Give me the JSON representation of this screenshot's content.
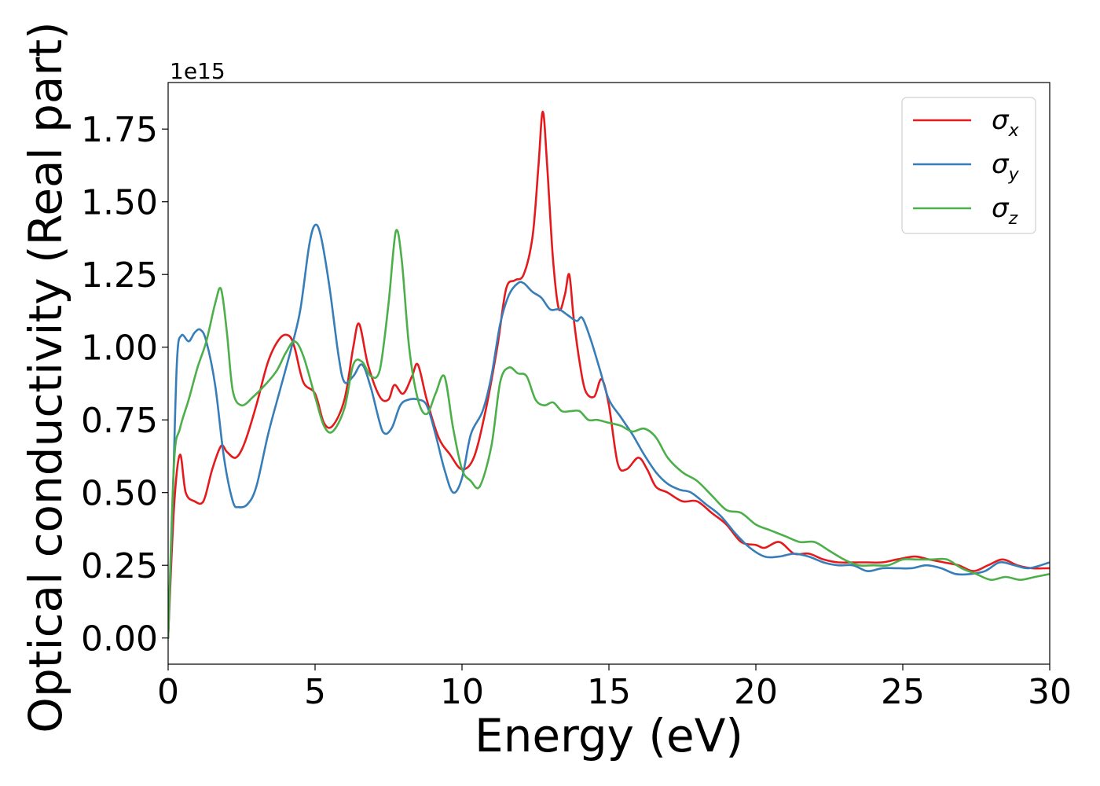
{
  "chart_data": {
    "type": "line",
    "xlabel": "Energy (eV)",
    "ylabel": "Optical conductivity (Real part)",
    "y_offset_text": "1e15",
    "xlim": [
      0,
      30
    ],
    "ylim": [
      -0.09,
      1.91
    ],
    "y_scale_factor": 1000000000000000.0,
    "x_ticks": [
      0,
      5,
      10,
      15,
      20,
      25,
      30
    ],
    "x_tick_labels": [
      "0",
      "5",
      "10",
      "15",
      "20",
      "25",
      "30"
    ],
    "y_ticks": [
      0.0,
      0.25,
      0.5,
      0.75,
      1.0,
      1.25,
      1.5,
      1.75
    ],
    "y_tick_labels": [
      "0.00",
      "0.25",
      "0.50",
      "0.75",
      "1.00",
      "1.25",
      "1.50",
      "1.75"
    ],
    "grid": false,
    "legend_position": "top-right",
    "series": [
      {
        "name": "σ_x",
        "legend_symbol": "σ",
        "legend_sub": "x",
        "color": "#e41a1c",
        "x": [
          0,
          0.2,
          0.4,
          0.6,
          0.9,
          1.2,
          1.5,
          1.8,
          2.0,
          2.3,
          2.6,
          3.0,
          3.4,
          3.8,
          4.1,
          4.3,
          4.6,
          5.0,
          5.3,
          5.6,
          6.0,
          6.3,
          6.5,
          6.8,
          7.2,
          7.5,
          7.7,
          8.0,
          8.3,
          8.5,
          8.8,
          9.2,
          9.6,
          10.0,
          10.4,
          10.8,
          11.2,
          11.5,
          11.8,
          12.1,
          12.4,
          12.6,
          12.75,
          12.9,
          13.1,
          13.3,
          13.5,
          13.65,
          13.8,
          14.0,
          14.2,
          14.5,
          14.75,
          15.0,
          15.3,
          15.6,
          16.0,
          16.3,
          16.6,
          17.0,
          17.5,
          18.0,
          18.5,
          19.0,
          19.5,
          20.0,
          20.3,
          20.8,
          21.3,
          21.8,
          22.3,
          22.8,
          23.3,
          23.8,
          24.3,
          24.8,
          25.4,
          25.9,
          26.4,
          26.9,
          27.4,
          27.9,
          28.4,
          28.9,
          29.4,
          30.0
        ],
        "y": [
          0.0,
          0.45,
          0.63,
          0.5,
          0.47,
          0.47,
          0.58,
          0.66,
          0.64,
          0.62,
          0.67,
          0.8,
          0.95,
          1.03,
          1.04,
          1.0,
          0.88,
          0.84,
          0.74,
          0.73,
          0.82,
          1.0,
          1.08,
          0.94,
          0.83,
          0.82,
          0.87,
          0.84,
          0.9,
          0.94,
          0.82,
          0.69,
          0.63,
          0.58,
          0.62,
          0.78,
          1.0,
          1.2,
          1.23,
          1.25,
          1.38,
          1.62,
          1.81,
          1.62,
          1.3,
          1.13,
          1.18,
          1.25,
          1.1,
          0.95,
          0.85,
          0.83,
          0.89,
          0.8,
          0.6,
          0.58,
          0.62,
          0.58,
          0.52,
          0.5,
          0.47,
          0.47,
          0.43,
          0.39,
          0.33,
          0.32,
          0.31,
          0.33,
          0.29,
          0.29,
          0.27,
          0.26,
          0.26,
          0.26,
          0.26,
          0.27,
          0.28,
          0.27,
          0.26,
          0.25,
          0.23,
          0.25,
          0.27,
          0.25,
          0.24,
          0.24
        ]
      },
      {
        "name": "σ_y",
        "legend_symbol": "σ",
        "legend_sub": "y",
        "color": "#377eb8",
        "x": [
          0,
          0.15,
          0.3,
          0.45,
          0.7,
          0.9,
          1.1,
          1.3,
          1.6,
          1.9,
          2.2,
          2.4,
          2.7,
          3.0,
          3.4,
          3.8,
          4.2,
          4.5,
          4.8,
          5.0,
          5.2,
          5.5,
          5.8,
          6.0,
          6.3,
          6.6,
          6.9,
          7.3,
          7.6,
          7.9,
          8.2,
          8.5,
          8.8,
          9.1,
          9.4,
          9.7,
          10.0,
          10.3,
          10.7,
          11.0,
          11.3,
          11.6,
          11.9,
          12.1,
          12.4,
          12.7,
          13.0,
          13.3,
          13.6,
          13.9,
          14.1,
          14.4,
          14.7,
          15.0,
          15.4,
          15.8,
          16.2,
          16.6,
          17.0,
          17.4,
          17.8,
          18.3,
          18.8,
          19.3,
          19.8,
          20.3,
          20.8,
          21.3,
          21.8,
          22.3,
          22.8,
          23.3,
          23.8,
          24.3,
          24.8,
          25.3,
          25.8,
          26.3,
          26.8,
          27.3,
          27.8,
          28.3,
          28.8,
          29.3,
          30.0
        ],
        "y": [
          0.0,
          0.45,
          0.95,
          1.04,
          1.02,
          1.05,
          1.06,
          1.02,
          0.87,
          0.62,
          0.47,
          0.45,
          0.46,
          0.52,
          0.7,
          0.85,
          1.0,
          1.13,
          1.35,
          1.42,
          1.38,
          1.2,
          0.97,
          0.88,
          0.9,
          0.94,
          0.86,
          0.71,
          0.72,
          0.8,
          0.82,
          0.82,
          0.8,
          0.7,
          0.58,
          0.5,
          0.55,
          0.7,
          0.78,
          0.9,
          1.08,
          1.18,
          1.22,
          1.22,
          1.19,
          1.17,
          1.13,
          1.13,
          1.11,
          1.09,
          1.1,
          1.02,
          0.92,
          0.82,
          0.76,
          0.7,
          0.63,
          0.57,
          0.53,
          0.51,
          0.5,
          0.46,
          0.42,
          0.36,
          0.31,
          0.28,
          0.28,
          0.29,
          0.28,
          0.26,
          0.25,
          0.25,
          0.23,
          0.24,
          0.24,
          0.24,
          0.25,
          0.24,
          0.22,
          0.22,
          0.23,
          0.26,
          0.25,
          0.24,
          0.26
        ]
      },
      {
        "name": "σ_z",
        "legend_symbol": "σ",
        "legend_sub": "z",
        "color": "#4daf4a",
        "x": [
          0,
          0.2,
          0.4,
          0.7,
          1.0,
          1.3,
          1.6,
          1.8,
          2.0,
          2.2,
          2.5,
          2.9,
          3.3,
          3.7,
          4.0,
          4.3,
          4.6,
          5.0,
          5.3,
          5.6,
          6.0,
          6.3,
          6.6,
          6.9,
          7.2,
          7.5,
          7.75,
          7.95,
          8.2,
          8.5,
          8.8,
          9.1,
          9.4,
          9.7,
          10.0,
          10.3,
          10.6,
          11.0,
          11.3,
          11.6,
          11.9,
          12.2,
          12.5,
          12.8,
          13.1,
          13.4,
          13.7,
          14.0,
          14.3,
          14.6,
          15.0,
          15.4,
          15.8,
          16.2,
          16.6,
          17.0,
          17.5,
          18.0,
          18.5,
          19.0,
          19.5,
          20.0,
          20.5,
          21.0,
          21.5,
          22.0,
          22.5,
          23.0,
          23.5,
          24.0,
          24.5,
          25.0,
          25.5,
          26.0,
          26.5,
          27.0,
          27.5,
          28.0,
          28.5,
          29.0,
          29.5,
          30.0
        ],
        "y": [
          0.0,
          0.6,
          0.72,
          0.82,
          0.93,
          1.02,
          1.15,
          1.2,
          1.05,
          0.85,
          0.8,
          0.83,
          0.87,
          0.92,
          0.98,
          1.02,
          0.97,
          0.83,
          0.73,
          0.71,
          0.79,
          0.94,
          0.95,
          0.9,
          0.92,
          1.15,
          1.4,
          1.3,
          1.0,
          0.82,
          0.77,
          0.84,
          0.9,
          0.72,
          0.58,
          0.54,
          0.52,
          0.66,
          0.88,
          0.93,
          0.91,
          0.9,
          0.82,
          0.8,
          0.81,
          0.78,
          0.78,
          0.78,
          0.75,
          0.75,
          0.74,
          0.73,
          0.71,
          0.72,
          0.69,
          0.62,
          0.57,
          0.54,
          0.49,
          0.44,
          0.43,
          0.39,
          0.37,
          0.35,
          0.33,
          0.33,
          0.3,
          0.27,
          0.25,
          0.25,
          0.25,
          0.27,
          0.27,
          0.27,
          0.27,
          0.24,
          0.22,
          0.2,
          0.21,
          0.2,
          0.21,
          0.22
        ]
      }
    ]
  }
}
